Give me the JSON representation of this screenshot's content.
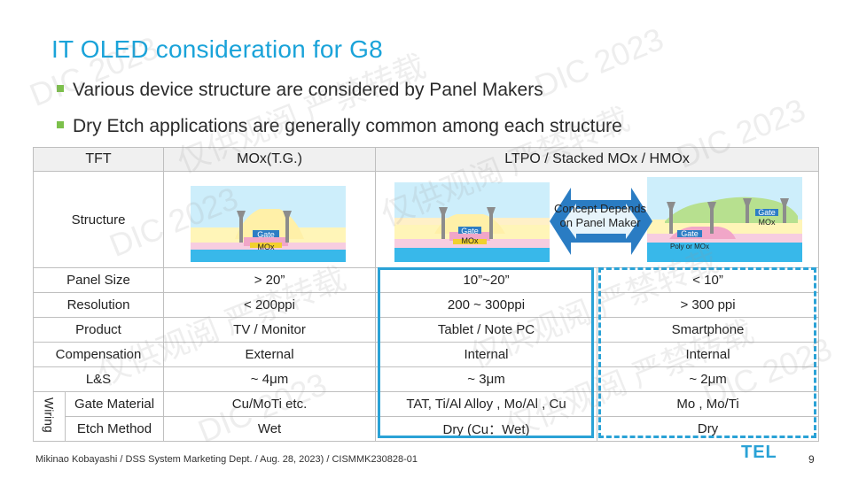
{
  "title": "IT OLED consideration for G8",
  "bullets": [
    "Various device structure are considered by Panel Makers",
    "Dry Etch applications are generally common among each structure"
  ],
  "table": {
    "header": {
      "col1": "TFT",
      "col2": "MOx(T.G.)",
      "col3": "LTPO / Stacked MOx / HMOx"
    },
    "structure_label": "Structure",
    "diagram_labels": {
      "gate": "Gate",
      "mox": "MOx",
      "poly_or_mox": "Poly or MOx"
    },
    "concept_text": "Concept Depends on Panel Maker",
    "wiring_label": "Wiring",
    "rows": [
      {
        "label": "Panel Size",
        "mox": "> 20”",
        "ltpo": "10”~20”",
        "hmox": "< 10”"
      },
      {
        "label": "Resolution",
        "mox": "< 200ppi",
        "ltpo": "200 ~ 300ppi",
        "hmox": "> 300 ppi"
      },
      {
        "label": "Product",
        "mox": "TV / Monitor",
        "ltpo": "Tablet / Note PC",
        "hmox": "Smartphone"
      },
      {
        "label": "Compensation",
        "mox": "External",
        "ltpo": "Internal",
        "hmox": "Internal"
      },
      {
        "label": "L&S",
        "mox": "~ 4μm",
        "ltpo": "~ 3μm",
        "hmox": "~ 2μm"
      },
      {
        "label": "Gate Material",
        "mox": "Cu/MoTi etc.",
        "ltpo": "TAT, Ti/Al Alloy , Mo/Al , Cu",
        "hmox": "Mo , Mo/Ti"
      },
      {
        "label": "Etch Method",
        "mox": "Wet",
        "ltpo": "Dry (Cu：Wet)",
        "hmox": "Dry"
      }
    ]
  },
  "watermarks": [
    "DIC 2023",
    "仅供观阅 严禁转载"
  ],
  "footer": "Mikinao Kobayashi / DSS System Marketing Dept. / Aug. 28, 2023) / CISMMK230828-01",
  "page_number": "9",
  "logo_text": "TEL",
  "colors": {
    "accent": "#1aa3d9",
    "bullet": "#7cc04b",
    "highlight": "#2aa2d6"
  }
}
